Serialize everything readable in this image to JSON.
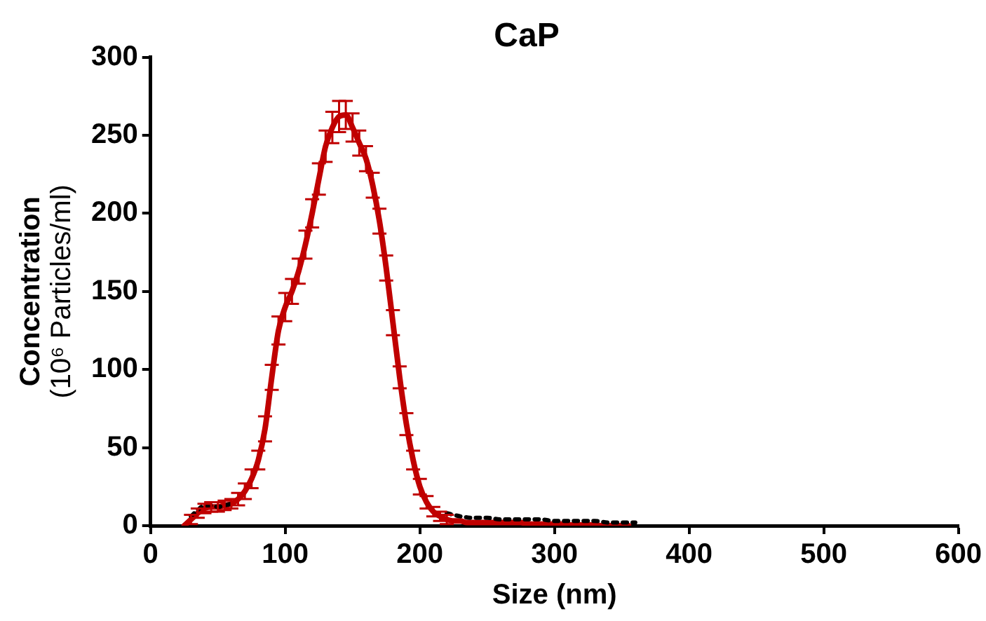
{
  "chart_data": {
    "type": "line",
    "title": "CaP",
    "xlabel": "Size (nm)",
    "ylabel": "Concentration (10⁶ Particles/ml)",
    "xlim": [
      0,
      600
    ],
    "xticks": [
      0,
      100,
      200,
      300,
      400,
      500,
      600
    ],
    "ylim": [
      0,
      300
    ],
    "yticks": [
      0,
      50,
      100,
      150,
      200,
      250,
      300
    ],
    "grid": false,
    "legend": false,
    "marker": "none",
    "series": [
      {
        "color": "#000000",
        "line_style": "dotted",
        "x": [
          30,
          35,
          40,
          45,
          50,
          55,
          60,
          65,
          70,
          200,
          210,
          220,
          230,
          240,
          250,
          260,
          270,
          280,
          290,
          300,
          310,
          320,
          330,
          340,
          350,
          360
        ],
        "values": [
          6,
          10,
          13,
          13,
          12,
          13,
          14,
          null,
          null,
          null,
          null,
          8,
          6,
          5,
          5,
          4,
          4,
          4,
          4,
          3,
          3,
          3,
          3,
          2,
          2,
          2
        ]
      },
      {
        "color": "#c00000",
        "line_style": "solid",
        "x": [
          25,
          30,
          35,
          40,
          45,
          50,
          55,
          60,
          65,
          70,
          75,
          80,
          85,
          90,
          95,
          100,
          105,
          110,
          115,
          120,
          125,
          130,
          135,
          140,
          145,
          150,
          155,
          160,
          165,
          170,
          175,
          180,
          185,
          190,
          195,
          200,
          205,
          210,
          215,
          220,
          225,
          230,
          235,
          240,
          245,
          250,
          255,
          260,
          265,
          270,
          275,
          280,
          285,
          290,
          295,
          300,
          305,
          310,
          315,
          320,
          325,
          330,
          335,
          340,
          345,
          350,
          355
        ],
        "values": [
          0,
          4,
          8,
          11,
          12,
          12,
          13,
          14,
          17,
          22,
          30,
          42,
          62,
          95,
          125,
          140,
          150,
          163,
          180,
          200,
          222,
          243,
          255,
          262,
          263,
          255,
          245,
          235,
          218,
          195,
          165,
          130,
          95,
          65,
          42,
          25,
          15,
          9,
          6,
          4,
          3,
          3,
          2,
          2,
          2,
          2,
          2,
          2,
          2,
          2,
          2,
          1,
          1,
          1,
          1,
          1,
          1,
          0.5,
          0.5,
          0.5,
          0.5,
          0.5,
          0,
          0,
          0,
          0,
          0
        ],
        "errors": [
          null,
          3,
          3,
          3,
          3,
          3,
          3,
          3,
          4,
          5,
          6,
          6,
          8,
          8,
          9,
          9,
          8,
          8,
          9,
          9,
          10,
          10,
          10,
          10,
          9,
          9,
          8,
          8,
          8,
          8,
          8,
          8,
          7,
          7,
          6,
          5,
          4,
          3,
          3,
          3,
          null,
          null,
          null,
          null,
          null,
          null,
          null,
          null,
          null,
          null,
          null,
          null,
          null,
          null,
          null,
          null,
          null,
          null,
          null,
          null,
          null,
          null,
          null,
          null,
          null,
          null,
          null
        ]
      }
    ]
  }
}
